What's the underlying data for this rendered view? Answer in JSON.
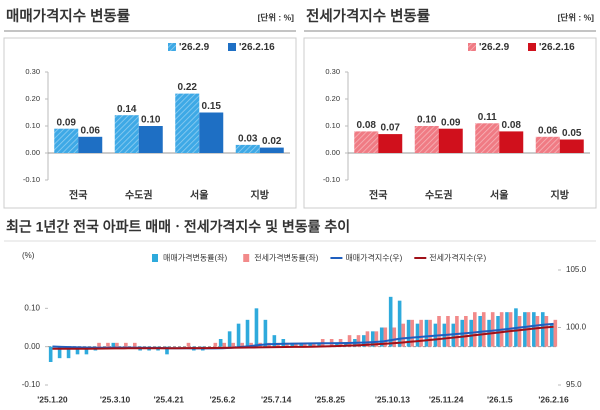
{
  "chart_data": [
    {
      "type": "bar",
      "title": "매매가격지수 변동률",
      "unit": "[단위 : %]",
      "categories": [
        "전국",
        "수도권",
        "서울",
        "지방"
      ],
      "series": [
        {
          "name": "'26.2.9",
          "color": "#3ea9e6",
          "pattern": "hatch",
          "values": [
            0.09,
            0.14,
            0.22,
            0.03
          ],
          "value_labels": [
            "0.09",
            "0.14",
            "0.22",
            "0.03"
          ]
        },
        {
          "name": "'26.2.16",
          "color": "#1e6fc4",
          "values": [
            0.06,
            0.1,
            0.15,
            0.02
          ],
          "value_labels": [
            "0.06",
            "0.10",
            "0.15",
            "0.02"
          ]
        }
      ],
      "ylim": [
        -0.1,
        0.3
      ],
      "yticks": [
        {
          "value": -0.1,
          "label": "-0.10"
        },
        {
          "value": 0,
          "label": "0.00"
        },
        {
          "value": 0.1,
          "label": "0.10"
        },
        {
          "value": 0.2,
          "label": "0.20"
        },
        {
          "value": 0.3,
          "label": "0.30"
        }
      ]
    },
    {
      "type": "bar",
      "title": "전세가격지수 변동률",
      "unit": "[단위 : %]",
      "categories": [
        "전국",
        "수도권",
        "서울",
        "지방"
      ],
      "series": [
        {
          "name": "'26.2.9",
          "color": "#f07b84",
          "pattern": "hatch",
          "values": [
            0.08,
            0.1,
            0.11,
            0.06
          ],
          "value_labels": [
            "0.08",
            "0.10",
            "0.11",
            "0.06"
          ]
        },
        {
          "name": "'26.2.16",
          "color": "#d0101c",
          "values": [
            0.07,
            0.09,
            0.08,
            0.05
          ],
          "value_labels": [
            "0.07",
            "0.09",
            "0.08",
            "0.05"
          ]
        }
      ],
      "ylim": [
        -0.1,
        0.3
      ],
      "yticks": [
        {
          "value": -0.1,
          "label": "-0.10"
        },
        {
          "value": 0,
          "label": "0.00"
        },
        {
          "value": 0.1,
          "label": "0.10"
        },
        {
          "value": 0.2,
          "label": "0.20"
        },
        {
          "value": 0.3,
          "label": "0.30"
        }
      ]
    },
    {
      "type": "combo",
      "title": "최근 1년간 전국 아파트 매매ㆍ전세가격지수 및 변동률 추이",
      "y_label": "(%)",
      "categories": [
        "'25.1.20",
        null,
        null,
        null,
        null,
        null,
        null,
        "'25.3.10",
        null,
        null,
        null,
        null,
        null,
        "'25.4.21",
        null,
        null,
        null,
        null,
        null,
        "'25.6.2",
        null,
        null,
        null,
        null,
        null,
        "'25.7.14",
        null,
        null,
        null,
        null,
        null,
        "'25.8.25",
        null,
        null,
        null,
        null,
        null,
        null,
        "'25.10.13",
        null,
        null,
        null,
        null,
        null,
        "'25.11.24",
        null,
        null,
        null,
        null,
        null,
        "'26.1.5",
        null,
        null,
        null,
        null,
        null,
        "'26.2.16"
      ],
      "series": [
        {
          "name": "매매가격변동률(좌)",
          "kind": "bar",
          "color": "#2eaadc",
          "values": [
            -0.04,
            -0.03,
            -0.03,
            -0.02,
            -0.02,
            -0.01,
            0.0,
            0.01,
            0.0,
            0.0,
            -0.01,
            -0.01,
            -0.01,
            -0.02,
            0.0,
            0.0,
            -0.01,
            -0.01,
            0.0,
            0.02,
            0.04,
            0.06,
            0.07,
            0.1,
            0.07,
            0.03,
            0.02,
            0.01,
            0.01,
            0.01,
            0.01,
            0.0,
            0.01,
            0.01,
            0.02,
            0.03,
            0.04,
            0.05,
            0.13,
            0.12,
            0.07,
            0.06,
            0.07,
            0.06,
            0.06,
            0.06,
            0.07,
            0.07,
            0.08,
            0.07,
            0.08,
            0.09,
            0.1,
            0.09,
            0.09,
            0.09,
            0.06
          ]
        },
        {
          "name": "전세가격변동률(좌)",
          "kind": "bar",
          "color": "#f28a8a",
          "values": [
            0.0,
            0.0,
            0.0,
            0.0,
            0.0,
            0.01,
            0.01,
            0.01,
            0.01,
            0.01,
            0.0,
            0.0,
            0.0,
            0.0,
            0.0,
            0.01,
            0.0,
            0.0,
            0.01,
            0.01,
            0.01,
            0.01,
            0.01,
            0.01,
            0.01,
            0.01,
            0.01,
            0.01,
            0.01,
            0.01,
            0.02,
            0.02,
            0.02,
            0.03,
            0.03,
            0.04,
            0.04,
            0.05,
            0.05,
            0.06,
            0.07,
            0.07,
            0.07,
            0.08,
            0.08,
            0.08,
            0.08,
            0.09,
            0.09,
            0.09,
            0.09,
            0.09,
            0.08,
            0.09,
            0.08,
            0.08,
            0.07
          ]
        },
        {
          "name": "매매가격지수(우)",
          "kind": "line",
          "axis": "y2",
          "color": "#1f5fbf",
          "values": [
            98.35,
            98.32,
            98.29,
            98.27,
            98.25,
            98.24,
            98.24,
            98.25,
            98.25,
            98.25,
            98.24,
            98.23,
            98.22,
            98.2,
            98.2,
            98.2,
            98.19,
            98.18,
            98.18,
            98.2,
            98.24,
            98.3,
            98.37,
            98.47,
            98.54,
            98.57,
            98.59,
            98.6,
            98.61,
            98.62,
            98.63,
            98.63,
            98.64,
            98.65,
            98.67,
            98.7,
            98.74,
            98.79,
            98.92,
            99.04,
            99.11,
            99.17,
            99.24,
            99.3,
            99.36,
            99.42,
            99.49,
            99.56,
            99.64,
            99.71,
            99.79,
            99.88,
            99.98,
            100.07,
            100.16,
            100.25,
            100.31
          ]
        },
        {
          "name": "전세가격지수(우)",
          "kind": "line",
          "axis": "y2",
          "color": "#a01018",
          "values": [
            98.15,
            98.15,
            98.15,
            98.15,
            98.15,
            98.16,
            98.17,
            98.18,
            98.19,
            98.2,
            98.2,
            98.2,
            98.2,
            98.2,
            98.2,
            98.21,
            98.21,
            98.21,
            98.22,
            98.23,
            98.24,
            98.25,
            98.26,
            98.27,
            98.28,
            98.29,
            98.3,
            98.31,
            98.32,
            98.33,
            98.35,
            98.37,
            98.39,
            98.42,
            98.45,
            98.49,
            98.53,
            98.58,
            98.63,
            98.69,
            98.76,
            98.83,
            98.9,
            98.98,
            99.06,
            99.14,
            99.22,
            99.31,
            99.4,
            99.49,
            99.58,
            99.67,
            99.75,
            99.84,
            99.92,
            100.0,
            100.07
          ]
        }
      ],
      "ylim": [
        -0.1,
        0.2
      ],
      "yticks": [
        {
          "value": -0.1,
          "label": "-0.10"
        },
        {
          "value": 0,
          "label": "0.00"
        },
        {
          "value": 0.1,
          "label": "0.10"
        }
      ],
      "y2lim": [
        95,
        105
      ],
      "y2ticks": [
        {
          "value": 95,
          "label": "95.0"
        },
        {
          "value": 100,
          "label": "100.0"
        },
        {
          "value": 105,
          "label": "105.0"
        }
      ],
      "legend": "top"
    }
  ]
}
